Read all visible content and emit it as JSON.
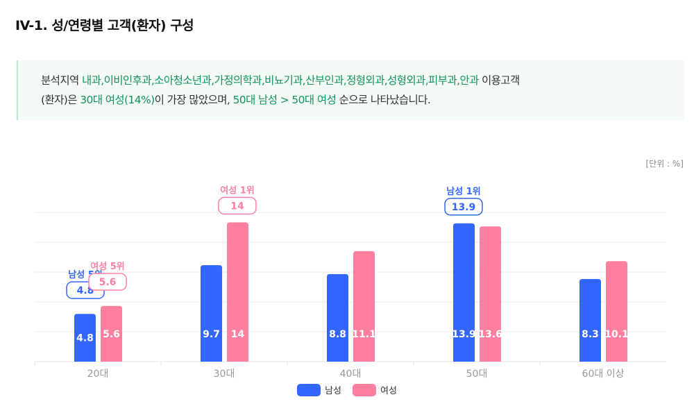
{
  "title": "IV-1. 성/연령별 고객(환자) 구성",
  "summary": {
    "line1": [
      {
        "text": "분석지역 ",
        "hl": false
      },
      {
        "text": "내과,이비인후과,소아청소년과,가정의학과,비뇨기과,산부인과,정형외과,성형외과,피부과,안과",
        "hl": true
      },
      {
        "text": " 이용고객",
        "hl": false
      }
    ],
    "line2": [
      {
        "text": "(환자)은 ",
        "hl": false
      },
      {
        "text": "30대 여성(14%)",
        "hl": true
      },
      {
        "text": "이 가장 많았으며, ",
        "hl": false
      },
      {
        "text": "50대 남성 > 50대 여성",
        "hl": true
      },
      {
        "text": " 순으로 나타났습니다.",
        "hl": false
      }
    ]
  },
  "unit_label": "[단위 : %]",
  "chart_data": {
    "type": "bar",
    "categories": [
      "20대",
      "30대",
      "40대",
      "50대",
      "60대 이상"
    ],
    "series": [
      {
        "name": "남성",
        "color": "#3366ff",
        "values": [
          4.8,
          9.7,
          8.8,
          13.9,
          8.3
        ]
      },
      {
        "name": "여성",
        "color": "#ff7fa0",
        "values": [
          5.6,
          14,
          11.1,
          13.6,
          10.1
        ]
      }
    ],
    "ylim": [
      0,
      15
    ],
    "grid": true,
    "legend": "bottom",
    "annotations": [
      {
        "series": 0,
        "category": 0,
        "label": "남성 5위",
        "value": "4.8"
      },
      {
        "series": 1,
        "category": 0,
        "label": "여성 5위",
        "value": "5.6"
      },
      {
        "series": 1,
        "category": 1,
        "label": "여성 1위",
        "value": "14"
      },
      {
        "series": 0,
        "category": 3,
        "label": "남성 1위",
        "value": "13.9"
      }
    ]
  }
}
